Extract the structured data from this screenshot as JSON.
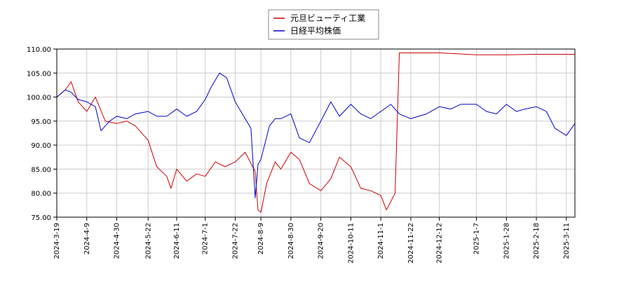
{
  "chart_data": {
    "type": "line",
    "title": "",
    "xlabel": "",
    "ylabel": "",
    "ylim": [
      75.0,
      110.0
    ],
    "y_ticks": [
      "75.00",
      "80.00",
      "85.00",
      "90.00",
      "95.00",
      "100.00",
      "105.00",
      "110.00"
    ],
    "x_ticks": [
      "2024-3-19",
      "2024-4-9",
      "2024-4-30",
      "2024-5-22",
      "2024-6-11",
      "2024-7-1",
      "2024-7-22",
      "2024-8-9",
      "2024-8-30",
      "2024-9-20",
      "2024-10-11",
      "2024-11-1",
      "2024-11-22",
      "2024-12-12",
      "2025-1-7",
      "2025-1-28",
      "2025-2-18",
      "2025-3-11"
    ],
    "grid": true,
    "legend_position": "top-center",
    "series": [
      {
        "name": "元旦ビューティ工業",
        "color": "#cc0000",
        "values": [
          [
            "2024-3-19",
            100.0
          ],
          [
            "2024-3-25",
            101.5
          ],
          [
            "2024-3-29",
            103.2
          ],
          [
            "2024-4-3",
            99.0
          ],
          [
            "2024-4-9",
            97.0
          ],
          [
            "2024-4-15",
            100.0
          ],
          [
            "2024-4-22",
            95.0
          ],
          [
            "2024-4-30",
            94.5
          ],
          [
            "2024-5-7",
            95.0
          ],
          [
            "2024-5-13",
            94.0
          ],
          [
            "2024-5-22",
            91.0
          ],
          [
            "2024-5-28",
            85.5
          ],
          [
            "2024-6-4",
            83.5
          ],
          [
            "2024-6-7",
            81.0
          ],
          [
            "2024-6-11",
            85.0
          ],
          [
            "2024-6-18",
            82.5
          ],
          [
            "2024-6-25",
            84.0
          ],
          [
            "2024-7-1",
            83.5
          ],
          [
            "2024-7-8",
            86.5
          ],
          [
            "2024-7-15",
            85.5
          ],
          [
            "2024-7-22",
            86.5
          ],
          [
            "2024-7-29",
            88.5
          ],
          [
            "2024-8-5",
            84.5
          ],
          [
            "2024-8-7",
            76.5
          ],
          [
            "2024-8-9",
            76.0
          ],
          [
            "2024-8-13",
            82.0
          ],
          [
            "2024-8-19",
            86.5
          ],
          [
            "2024-8-23",
            85.0
          ],
          [
            "2024-8-30",
            88.5
          ],
          [
            "2024-9-5",
            87.0
          ],
          [
            "2024-9-12",
            82.0
          ],
          [
            "2024-9-20",
            80.5
          ],
          [
            "2024-9-27",
            83.0
          ],
          [
            "2024-10-3",
            87.5
          ],
          [
            "2024-10-11",
            85.5
          ],
          [
            "2024-10-18",
            81.0
          ],
          [
            "2024-10-25",
            80.5
          ],
          [
            "2024-11-1",
            79.5
          ],
          [
            "2024-11-5",
            76.5
          ],
          [
            "2024-11-11",
            80.0
          ],
          [
            "2024-11-14",
            109.2
          ],
          [
            "2024-11-22",
            109.2
          ],
          [
            "2024-12-12",
            109.2
          ],
          [
            "2025-1-7",
            108.8
          ],
          [
            "2025-1-28",
            108.8
          ],
          [
            "2025-2-18",
            108.9
          ],
          [
            "2025-3-11",
            108.9
          ],
          [
            "2025-3-17",
            108.9
          ]
        ]
      },
      {
        "name": "日経平均株価",
        "color": "#0000cc",
        "values": [
          [
            "2024-3-19",
            100.0
          ],
          [
            "2024-3-25",
            101.5
          ],
          [
            "2024-3-29",
            101.0
          ],
          [
            "2024-4-3",
            99.5
          ],
          [
            "2024-4-9",
            99.0
          ],
          [
            "2024-4-15",
            98.0
          ],
          [
            "2024-4-19",
            93.0
          ],
          [
            "2024-4-25",
            95.0
          ],
          [
            "2024-4-30",
            96.0
          ],
          [
            "2024-5-7",
            95.5
          ],
          [
            "2024-5-13",
            96.5
          ],
          [
            "2024-5-22",
            97.0
          ],
          [
            "2024-5-28",
            96.0
          ],
          [
            "2024-6-4",
            96.0
          ],
          [
            "2024-6-11",
            97.5
          ],
          [
            "2024-6-18",
            96.0
          ],
          [
            "2024-6-25",
            97.0
          ],
          [
            "2024-7-1",
            99.5
          ],
          [
            "2024-7-5",
            102.0
          ],
          [
            "2024-7-11",
            105.0
          ],
          [
            "2024-7-16",
            104.0
          ],
          [
            "2024-7-22",
            99.0
          ],
          [
            "2024-7-29",
            95.5
          ],
          [
            "2024-8-2",
            93.5
          ],
          [
            "2024-8-5",
            79.0
          ],
          [
            "2024-8-7",
            86.0
          ],
          [
            "2024-8-9",
            87.0
          ],
          [
            "2024-8-15",
            94.0
          ],
          [
            "2024-8-19",
            95.5
          ],
          [
            "2024-8-23",
            95.5
          ],
          [
            "2024-8-30",
            96.5
          ],
          [
            "2024-9-5",
            91.5
          ],
          [
            "2024-9-12",
            90.5
          ],
          [
            "2024-9-20",
            95.0
          ],
          [
            "2024-9-27",
            99.0
          ],
          [
            "2024-10-3",
            96.0
          ],
          [
            "2024-10-11",
            98.5
          ],
          [
            "2024-10-18",
            96.5
          ],
          [
            "2024-10-25",
            95.5
          ],
          [
            "2024-11-1",
            97.0
          ],
          [
            "2024-11-8",
            98.5
          ],
          [
            "2024-11-14",
            96.5
          ],
          [
            "2024-11-22",
            95.5
          ],
          [
            "2024-12-3",
            96.5
          ],
          [
            "2024-12-12",
            98.0
          ],
          [
            "2024-12-20",
            97.5
          ],
          [
            "2024-12-27",
            98.5
          ],
          [
            "2025-1-7",
            98.5
          ],
          [
            "2025-1-14",
            97.0
          ],
          [
            "2025-1-21",
            96.5
          ],
          [
            "2025-1-28",
            98.5
          ],
          [
            "2025-2-4",
            97.0
          ],
          [
            "2025-2-10",
            97.5
          ],
          [
            "2025-2-18",
            98.0
          ],
          [
            "2025-2-25",
            97.0
          ],
          [
            "2025-3-3",
            93.5
          ],
          [
            "2025-3-11",
            92.0
          ],
          [
            "2025-3-17",
            94.5
          ]
        ]
      }
    ]
  }
}
